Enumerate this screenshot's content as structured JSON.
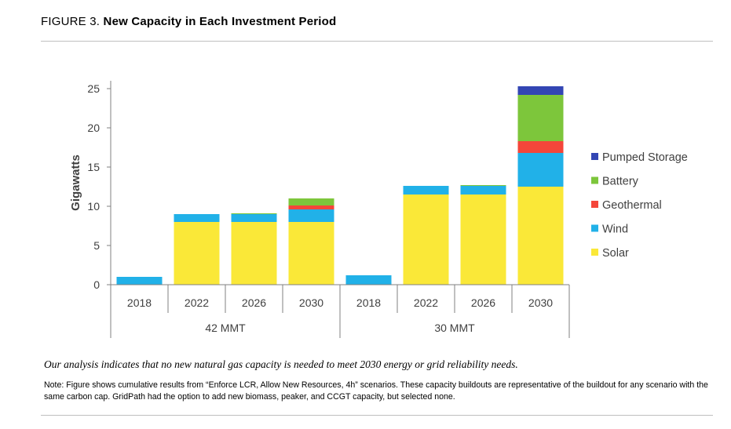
{
  "figure": {
    "number": "FIGURE 3.",
    "title": "New Capacity in Each Investment Period"
  },
  "caption": "Our analysis indicates that no new natural gas capacity is needed to meet 2030 energy or grid reliability needs.",
  "note": "Note: Figure shows cumulative results from “Enforce LCR, Allow New Resources, 4h” scenarios. These capacity buildouts are representative of the buildout for any scenario with the same carbon cap. GridPath had the option to add new biomass, peaker, and CCGT capacity, but selected none.",
  "chart_data": {
    "type": "bar",
    "stacked": true,
    "ylabel": "Gigawatts",
    "xlabel": "",
    "ylim": [
      0,
      26
    ],
    "yticks": [
      0,
      5,
      10,
      15,
      20,
      25
    ],
    "groups": [
      {
        "name": "42 MMT",
        "categories": [
          "2018",
          "2022",
          "2026",
          "2030"
        ]
      },
      {
        "name": "30 MMT",
        "categories": [
          "2018",
          "2022",
          "2026",
          "2030"
        ]
      }
    ],
    "legend_position": "right",
    "series": [
      {
        "name": "Solar",
        "color": "#fae838",
        "values": [
          0,
          8.0,
          8.0,
          8.0,
          0,
          11.5,
          11.5,
          12.5
        ]
      },
      {
        "name": "Wind",
        "color": "#21b1e8",
        "values": [
          1.0,
          1.0,
          1.0,
          1.6,
          1.2,
          1.1,
          1.1,
          4.3
        ]
      },
      {
        "name": "Geothermal",
        "color": "#f4463a",
        "values": [
          0,
          0,
          0,
          0.5,
          0,
          0,
          0,
          1.5
        ]
      },
      {
        "name": "Battery",
        "color": "#7dc63b",
        "values": [
          0,
          0,
          0.1,
          0.9,
          0,
          0,
          0.1,
          5.9
        ]
      },
      {
        "name": "Pumped Storage",
        "color": "#3346b4",
        "values": [
          0,
          0,
          0,
          0,
          0,
          0,
          0,
          1.1
        ]
      }
    ],
    "legend_order": [
      "Pumped Storage",
      "Battery",
      "Geothermal",
      "Wind",
      "Solar"
    ]
  }
}
